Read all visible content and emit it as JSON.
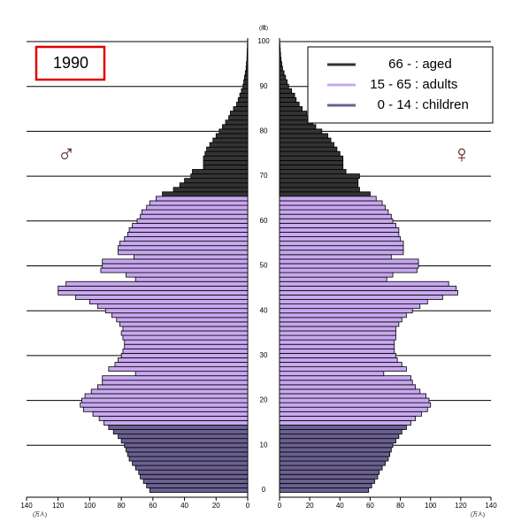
{
  "chart_data": {
    "type": "pyramid",
    "title": "1990",
    "male_label": "♂",
    "female_label": "♀",
    "age_unit": "(歳)",
    "x_unit": "(万人)",
    "ylim": [
      0,
      100
    ],
    "yticks": [
      0,
      10,
      20,
      30,
      40,
      50,
      60,
      70,
      80,
      90,
      100
    ],
    "xlim": [
      0,
      140
    ],
    "xticks": [
      0,
      20,
      40,
      60,
      80,
      100,
      120,
      140
    ],
    "series": [
      {
        "name": "66 -",
        "label": ": aged",
        "color": "#333333",
        "age_start": 66,
        "male": [
          54,
          47,
          43,
          40,
          36,
          35,
          28,
          28,
          28,
          27,
          26,
          24,
          22,
          20,
          18,
          16,
          14,
          12,
          11,
          9,
          7,
          6,
          5,
          4,
          3,
          2.5,
          2,
          1.5,
          1,
          0.8,
          0.5,
          0.4,
          0.3,
          0.2,
          0.1
        ],
        "female": [
          60,
          53,
          52,
          52,
          53,
          44,
          42,
          42,
          42,
          40,
          38,
          36,
          34,
          32,
          28,
          24,
          22,
          20,
          18,
          15,
          13,
          11,
          10,
          8,
          6,
          5,
          4,
          3,
          2,
          1.5,
          1,
          0.7,
          0.5,
          0.3,
          0.1
        ]
      },
      {
        "name": "15 - 65",
        "label": ": adults",
        "color": "#c8a8f0",
        "age_start": 15,
        "male": [
          91,
          94,
          98,
          104,
          106,
          105,
          103,
          99,
          95,
          92,
          92,
          71,
          88,
          84,
          82,
          80,
          79,
          78,
          78,
          79,
          80,
          79,
          81,
          83,
          86,
          90,
          95,
          100,
          109,
          120,
          120,
          115,
          71,
          77,
          93,
          92,
          92,
          72,
          82,
          82,
          81,
          78,
          76,
          75,
          73,
          70,
          68,
          67,
          64,
          62,
          58
        ],
        "female": [
          87,
          90,
          94,
          98,
          100,
          99,
          97,
          93,
          90,
          88,
          87,
          69,
          84,
          81,
          78,
          77,
          76,
          76,
          76,
          77,
          77,
          77,
          79,
          81,
          84,
          88,
          93,
          98,
          108,
          118,
          117,
          112,
          71,
          75,
          91,
          92,
          92,
          74,
          82,
          82,
          82,
          80,
          79,
          79,
          77,
          75,
          74,
          72,
          70,
          68,
          64
        ]
      },
      {
        "name": "0 - 14",
        "label": ": children",
        "color": "#6a6090",
        "age_start": 0,
        "male": [
          62,
          64,
          66,
          68,
          69,
          71,
          73,
          75,
          76,
          77,
          78,
          80,
          82,
          85,
          88
        ],
        "female": [
          59,
          61,
          63,
          65,
          66,
          68,
          70,
          72,
          73,
          74,
          75,
          77,
          79,
          81,
          84
        ]
      }
    ]
  }
}
